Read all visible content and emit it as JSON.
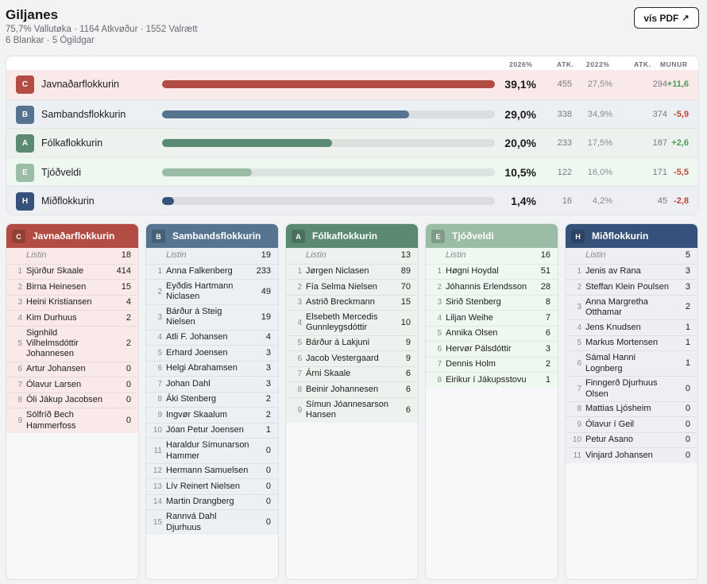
{
  "header": {
    "title": "Giljanes",
    "stats_line1": "75,7% Vallutøka · 1164 Atkvøður · 1552 Valrætt",
    "stats_line2": "6 Blankar · 5 Ógildgar",
    "pdf_button_label": "vís PDF",
    "pdf_button_icon": "arrow-up-right-icon"
  },
  "summary": {
    "columns": {
      "pct_2026": "2026%",
      "atk_2026": "ATK.",
      "pct_2022": "2022%",
      "atk_2022": "ATK.",
      "munur": "MUNUR"
    },
    "rows": [
      {
        "letter": "C",
        "name": "Javnaðarflokkurin",
        "share": 39.1,
        "pct_2026": "39,1%",
        "atk_2026": "455",
        "pct_2022": "27,5%",
        "atk_2022": "294",
        "munur": "+11,6",
        "trend": "up",
        "color": "#b34d43",
        "row_bg": "#f9e9e8"
      },
      {
        "letter": "B",
        "name": "Sambandsflokkurin",
        "share": 29.0,
        "pct_2026": "29,0%",
        "atk_2026": "338",
        "pct_2022": "34,9%",
        "atk_2022": "374",
        "munur": "-5,9",
        "trend": "down",
        "color": "#56748f",
        "row_bg": "#eceff3"
      },
      {
        "letter": "A",
        "name": "Fólkaflokkurin",
        "share": 20.0,
        "pct_2026": "20,0%",
        "atk_2026": "233",
        "pct_2022": "17,5%",
        "atk_2022": "187",
        "munur": "+2,6",
        "trend": "up",
        "color": "#5b8a72",
        "row_bg": "#edf2ef"
      },
      {
        "letter": "E",
        "name": "Tjóðveldi",
        "share": 10.5,
        "pct_2026": "10,5%",
        "atk_2026": "122",
        "pct_2022": "16,0%",
        "atk_2022": "171",
        "munur": "-5,5",
        "trend": "down",
        "color": "#9cbda5",
        "row_bg": "#eef8f1"
      },
      {
        "letter": "H",
        "name": "Miðflokkurin",
        "share": 1.4,
        "pct_2026": "1,4%",
        "atk_2026": "16",
        "pct_2022": "4,2%",
        "atk_2022": "45",
        "munur": "-2,8",
        "trend": "down",
        "color": "#36527a",
        "row_bg": "#eeeff3"
      }
    ]
  },
  "columns": [
    {
      "letter": "C",
      "name": "Javnaðarflokkurin",
      "color": "#b34d43",
      "body_bg": "#f9e9e8",
      "listin_label": "Listin",
      "listin_votes": "18",
      "candidates": [
        {
          "n": "1",
          "name": "Sjúrður Skaale",
          "votes": "414"
        },
        {
          "n": "2",
          "name": "Birna Heinesen",
          "votes": "15"
        },
        {
          "n": "3",
          "name": "Heini Kristiansen",
          "votes": "4"
        },
        {
          "n": "4",
          "name": "Kim Durhuus",
          "votes": "2"
        },
        {
          "n": "5",
          "name": "Signhild Vilhelmsdóttir Johannesen",
          "votes": "2"
        },
        {
          "n": "6",
          "name": "Artur Johansen",
          "votes": "0"
        },
        {
          "n": "7",
          "name": "Ólavur Larsen",
          "votes": "0"
        },
        {
          "n": "8",
          "name": "Óli Jákup Jacobsen",
          "votes": "0"
        },
        {
          "n": "9",
          "name": "Sólfríð Bech Hammerfoss",
          "votes": "0"
        }
      ]
    },
    {
      "letter": "B",
      "name": "Sambandsflokkurin",
      "color": "#56748f",
      "body_bg": "#eceff3",
      "listin_label": "Listin",
      "listin_votes": "19",
      "candidates": [
        {
          "n": "1",
          "name": "Anna Falkenberg",
          "votes": "233"
        },
        {
          "n": "2",
          "name": "Eyðdis Hartmann Niclasen",
          "votes": "49"
        },
        {
          "n": "3",
          "name": "Bárður á Steig Nielsen",
          "votes": "19"
        },
        {
          "n": "4",
          "name": "Atli F. Johansen",
          "votes": "4"
        },
        {
          "n": "5",
          "name": "Erhard Joensen",
          "votes": "3"
        },
        {
          "n": "6",
          "name": "Helgi Abrahamsen",
          "votes": "3"
        },
        {
          "n": "7",
          "name": "Johan Dahl",
          "votes": "3"
        },
        {
          "n": "8",
          "name": "Áki Stenberg",
          "votes": "2"
        },
        {
          "n": "9",
          "name": "Ingvør Skaalum",
          "votes": "2"
        },
        {
          "n": "10",
          "name": "Jóan Petur Joensen",
          "votes": "1"
        },
        {
          "n": "11",
          "name": "Haraldur Símunarson Hammer",
          "votes": "0"
        },
        {
          "n": "12",
          "name": "Hermann Samuelsen",
          "votes": "0"
        },
        {
          "n": "13",
          "name": "Lív Reinert Nielsen",
          "votes": "0"
        },
        {
          "n": "14",
          "name": "Martin Drangberg",
          "votes": "0"
        },
        {
          "n": "15",
          "name": "Rannvá Dahl Djurhuus",
          "votes": "0"
        }
      ]
    },
    {
      "letter": "A",
      "name": "Fólkaflokkurin",
      "color": "#5b8a72",
      "body_bg": "#edf2ef",
      "listin_label": "Listin",
      "listin_votes": "13",
      "candidates": [
        {
          "n": "1",
          "name": "Jørgen Niclasen",
          "votes": "89"
        },
        {
          "n": "2",
          "name": "Fía Selma Nielsen",
          "votes": "70"
        },
        {
          "n": "3",
          "name": "Astrið Breckmann",
          "votes": "15"
        },
        {
          "n": "4",
          "name": "Elsebeth Mercedis Gunnleygsdóttir",
          "votes": "10"
        },
        {
          "n": "5",
          "name": "Bárður á Lakjuni",
          "votes": "9"
        },
        {
          "n": "6",
          "name": "Jacob Vestergaard",
          "votes": "9"
        },
        {
          "n": "7",
          "name": "Árni Skaale",
          "votes": "6"
        },
        {
          "n": "8",
          "name": "Beinir Johannesen",
          "votes": "6"
        },
        {
          "n": "9",
          "name": "Símun Jóannesarson Hansen",
          "votes": "6"
        }
      ]
    },
    {
      "letter": "E",
      "name": "Tjóðveldi",
      "color": "#9cbda5",
      "body_bg": "#eef8f1",
      "listin_label": "Listin",
      "listin_votes": "16",
      "candidates": [
        {
          "n": "1",
          "name": "Høgni Hoydal",
          "votes": "51"
        },
        {
          "n": "2",
          "name": "Jóhannis Erlendsson",
          "votes": "28"
        },
        {
          "n": "3",
          "name": "Sirið Stenberg",
          "votes": "8"
        },
        {
          "n": "4",
          "name": "Liljan Weihe",
          "votes": "7"
        },
        {
          "n": "5",
          "name": "Annika Olsen",
          "votes": "6"
        },
        {
          "n": "6",
          "name": "Hervør Pálsdóttir",
          "votes": "3"
        },
        {
          "n": "7",
          "name": "Dennis Holm",
          "votes": "2"
        },
        {
          "n": "8",
          "name": "Eirikur í Jákupsstovu",
          "votes": "1"
        }
      ]
    },
    {
      "letter": "H",
      "name": "Miðflokkurin",
      "color": "#36527a",
      "body_bg": "#eeeff3",
      "listin_label": "Listin",
      "listin_votes": "5",
      "candidates": [
        {
          "n": "1",
          "name": "Jenis av Rana",
          "votes": "3"
        },
        {
          "n": "2",
          "name": "Steffan Klein Poulsen",
          "votes": "3"
        },
        {
          "n": "3",
          "name": "Anna Margretha Otthamar",
          "votes": "2"
        },
        {
          "n": "4",
          "name": "Jens Knudsen",
          "votes": "1"
        },
        {
          "n": "5",
          "name": "Markus Mortensen",
          "votes": "1"
        },
        {
          "n": "6",
          "name": "Sámal Hanni Lognberg",
          "votes": "1"
        },
        {
          "n": "7",
          "name": "Finngerð Djurhuus Olsen",
          "votes": "0"
        },
        {
          "n": "8",
          "name": "Mattias Ljósheim",
          "votes": "0"
        },
        {
          "n": "9",
          "name": "Ólavur í Geil",
          "votes": "0"
        },
        {
          "n": "10",
          "name": "Petur Asano",
          "votes": "0"
        },
        {
          "n": "11",
          "name": "Vinjard Johansen",
          "votes": "0"
        }
      ]
    }
  ]
}
